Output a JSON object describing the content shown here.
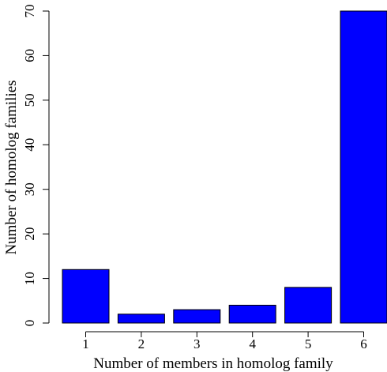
{
  "chart_data": {
    "type": "bar",
    "categories": [
      "1",
      "2",
      "3",
      "4",
      "5",
      "6"
    ],
    "values": [
      12,
      2,
      3,
      4,
      8,
      70
    ],
    "xlabel": "Number of members in homolog family",
    "ylabel": "Number of homolog families",
    "ylim": [
      0,
      70
    ],
    "yticks": [
      "0",
      "10",
      "20",
      "30",
      "40",
      "50",
      "60",
      "70"
    ],
    "grid": false,
    "legend": "none",
    "bar_color": "#0000ff",
    "edge_color": "#000000"
  }
}
